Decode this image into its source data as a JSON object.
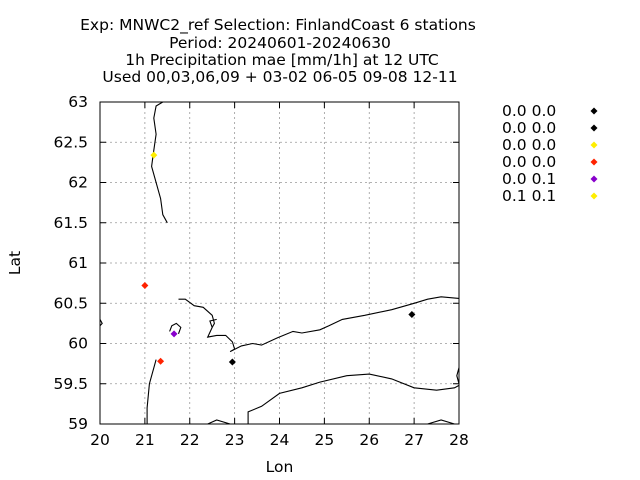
{
  "chart_data": {
    "type": "scatter",
    "title_lines": [
      "Exp: MNWC2_ref   Selection: FinlandCoast      6 stations",
      "Period: 20240601-20240630",
      "1h Precipitation mae [mm/1h] at  12 UTC",
      "Used 00,03,06,09 + 03-02 06-05 09-08 12-11"
    ],
    "xlabel": "Lon",
    "ylabel": "Lat",
    "xlim": [
      20,
      28
    ],
    "ylim": [
      59,
      63
    ],
    "xticks": [
      "20",
      "21",
      "22",
      "23",
      "24",
      "25",
      "26",
      "27",
      "28"
    ],
    "yticks": [
      "59",
      "59.5",
      "60",
      "60.5",
      "61",
      "61.5",
      "62",
      "62.5",
      "63"
    ],
    "grid": true,
    "legend_position": "right",
    "stations": [
      {
        "label": "0.0 0.0",
        "color": "#000000",
        "x": 26.95,
        "y": 60.36
      },
      {
        "label": "0.0 0.0",
        "color": "#000000",
        "x": 22.95,
        "y": 59.77
      },
      {
        "label": "0.0 0.0",
        "color": "#ffee00",
        "x": 21.2,
        "y": 62.34
      },
      {
        "label": "0.0 0.0",
        "color": "#ff2200",
        "x": 21.0,
        "y": 60.72
      },
      {
        "label": "0.0 0.1",
        "color": "#8800cc",
        "x": 21.65,
        "y": 60.12
      },
      {
        "label": "0.1 0.1",
        "color": "#ffee00",
        "x": 21.35,
        "y": 59.78
      }
    ],
    "extra_marker": {
      "color": "#ff2200",
      "x": 21.35,
      "y": 59.78
    },
    "coastlines": [
      [
        [
          21.05,
          59.0
        ],
        [
          21.05,
          59.2
        ],
        [
          21.1,
          59.5
        ],
        [
          21.25,
          59.8
        ]
      ],
      [
        [
          21.4,
          63.0
        ],
        [
          21.25,
          62.95
        ],
        [
          21.2,
          62.8
        ],
        [
          21.25,
          62.6
        ],
        [
          21.2,
          62.4
        ],
        [
          21.15,
          62.2
        ],
        [
          21.25,
          62.0
        ],
        [
          21.35,
          61.8
        ],
        [
          21.4,
          61.6
        ],
        [
          21.5,
          61.5
        ]
      ],
      [
        [
          20.0,
          60.3
        ],
        [
          20.05,
          60.25
        ],
        [
          20.0,
          60.22
        ]
      ],
      [
        [
          21.55,
          60.15
        ],
        [
          21.6,
          60.22
        ],
        [
          21.7,
          60.25
        ],
        [
          21.8,
          60.2
        ],
        [
          21.75,
          60.12
        ]
      ],
      [
        [
          21.75,
          60.55
        ],
        [
          21.9,
          60.55
        ],
        [
          22.1,
          60.47
        ],
        [
          22.3,
          60.45
        ],
        [
          22.5,
          60.35
        ],
        [
          22.55,
          60.25
        ],
        [
          22.5,
          60.2
        ],
        [
          22.4,
          60.08
        ],
        [
          22.6,
          60.1
        ],
        [
          22.8,
          60.1
        ],
        [
          22.95,
          60.02
        ],
        [
          23.0,
          59.93
        ],
        [
          22.9,
          59.9
        ],
        [
          23.15,
          59.97
        ],
        [
          23.4,
          60.0
        ],
        [
          23.6,
          59.98
        ],
        [
          23.95,
          60.07
        ],
        [
          24.3,
          60.15
        ],
        [
          24.5,
          60.13
        ],
        [
          24.9,
          60.17
        ],
        [
          25.1,
          60.22
        ],
        [
          25.4,
          60.3
        ],
        [
          25.9,
          60.35
        ],
        [
          26.5,
          60.42
        ],
        [
          27.0,
          60.5
        ],
        [
          27.3,
          60.55
        ],
        [
          27.6,
          60.58
        ],
        [
          28.0,
          60.56
        ]
      ],
      [
        [
          22.5,
          60.2
        ],
        [
          22.45,
          60.28
        ],
        [
          22.6,
          60.3
        ]
      ],
      [
        [
          23.3,
          59.0
        ],
        [
          23.3,
          59.15
        ],
        [
          23.6,
          59.22
        ],
        [
          24.0,
          59.38
        ],
        [
          24.5,
          59.45
        ],
        [
          24.9,
          59.52
        ],
        [
          25.5,
          59.6
        ],
        [
          26.0,
          59.62
        ],
        [
          26.5,
          59.56
        ],
        [
          27.0,
          59.45
        ],
        [
          27.5,
          59.42
        ],
        [
          27.9,
          59.45
        ],
        [
          28.0,
          59.48
        ]
      ],
      [
        [
          22.4,
          59.0
        ],
        [
          22.6,
          59.05
        ],
        [
          22.9,
          59.0
        ]
      ],
      [
        [
          27.3,
          59.0
        ],
        [
          27.6,
          59.05
        ],
        [
          27.9,
          59.0
        ]
      ],
      [
        [
          28.0,
          59.7
        ],
        [
          27.95,
          59.6
        ],
        [
          28.0,
          59.5
        ]
      ]
    ]
  }
}
